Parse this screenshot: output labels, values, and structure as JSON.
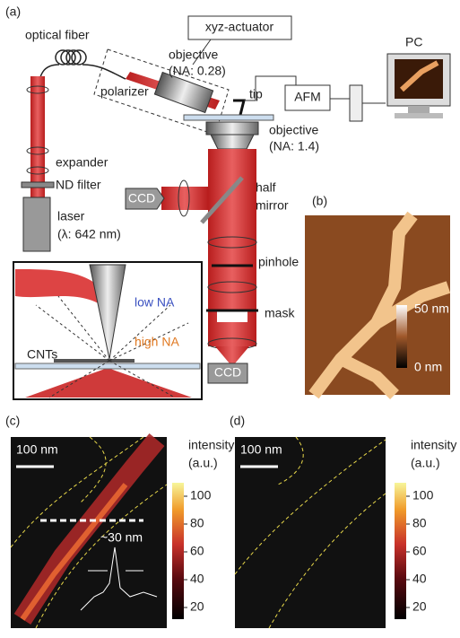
{
  "panel_a": {
    "label": "(a)",
    "optical_fiber": "optical fiber",
    "actuator": "xyz-actuator",
    "objective_top": "objective",
    "objective_top_na": "(NA: 0.28)",
    "pc": "PC",
    "polarizer": "polarizer",
    "tip": "tip",
    "afm": "AFM",
    "objective_bottom": "objective",
    "objective_bottom_na": "(NA: 1.4)",
    "expander": "expander",
    "nd_filter": "ND filter",
    "ccd_side": "CCD",
    "half_mirror": [
      "half",
      "mirror"
    ],
    "laser": "laser",
    "wavelength": "(λ: 642 nm)",
    "pinhole": "pinhole",
    "mask": "mask",
    "ccd_bottom": "CCD",
    "inset": {
      "low_na": "low NA",
      "high_na": "high NA",
      "cnts": "CNTs"
    }
  },
  "panel_b": {
    "label": "(b)",
    "scale_max": "50 nm",
    "scale_min": "0 nm"
  },
  "panel_c": {
    "label": "(c)",
    "scale_bar": "100 nm",
    "colorbar_title": [
      "intensity",
      "(a.u.)"
    ],
    "colorbar_ticks": [
      100,
      80,
      60,
      40,
      20
    ],
    "annotation": "~30 nm"
  },
  "panel_d": {
    "label": "(d)",
    "scale_bar": "100 nm",
    "colorbar_title": [
      "intensity",
      "(a.u.)"
    ],
    "colorbar_ticks": [
      100,
      80,
      60,
      40,
      20
    ]
  }
}
